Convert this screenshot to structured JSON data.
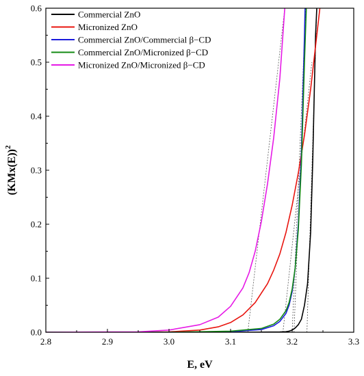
{
  "chart_data": {
    "type": "line",
    "title": "",
    "xlabel": "E, eV",
    "ylabel_main": "(KMx(E))",
    "ylabel_sup": "2",
    "xlim": [
      2.8,
      3.3
    ],
    "ylim": [
      0.0,
      0.6
    ],
    "x_ticks": [
      "2.8",
      "2.9",
      "3.0",
      "3.1",
      "3.2",
      "3.3"
    ],
    "y_ticks": [
      "0.0",
      "0.1",
      "0.2",
      "0.3",
      "0.4",
      "0.5",
      "0.6"
    ],
    "grid": false,
    "legend_position": "top-left",
    "series": [
      {
        "name": "Commercial ZnO",
        "color": "#000000",
        "points": [
          [
            2.8,
            0
          ],
          [
            3.1,
            0
          ],
          [
            3.18,
            0.0005
          ],
          [
            3.19,
            0.001
          ],
          [
            3.195,
            0.002
          ],
          [
            3.2,
            0.004
          ],
          [
            3.205,
            0.008
          ],
          [
            3.21,
            0.014
          ],
          [
            3.215,
            0.024
          ],
          [
            3.22,
            0.05
          ],
          [
            3.225,
            0.09
          ],
          [
            3.23,
            0.185
          ],
          [
            3.2335,
            0.32
          ],
          [
            3.236,
            0.45
          ],
          [
            3.238,
            0.55
          ],
          [
            3.24,
            0.6
          ]
        ]
      },
      {
        "name": "Micronized ZnO",
        "color": "#e8140e",
        "points": [
          [
            2.8,
            0
          ],
          [
            2.95,
            0.0001
          ],
          [
            3.0,
            0.0007
          ],
          [
            3.05,
            0.004
          ],
          [
            3.08,
            0.01
          ],
          [
            3.1,
            0.018
          ],
          [
            3.12,
            0.032
          ],
          [
            3.14,
            0.055
          ],
          [
            3.16,
            0.09
          ],
          [
            3.17,
            0.115
          ],
          [
            3.18,
            0.145
          ],
          [
            3.19,
            0.185
          ],
          [
            3.2,
            0.235
          ],
          [
            3.21,
            0.295
          ],
          [
            3.22,
            0.365
          ],
          [
            3.23,
            0.45
          ],
          [
            3.24,
            0.55
          ],
          [
            3.245,
            0.6
          ]
        ]
      },
      {
        "name": "Commercial ZnO/Commercial β−CD",
        "color": "#1a1adc",
        "points": [
          [
            2.8,
            0
          ],
          [
            3.0,
            0
          ],
          [
            3.1,
            0.001
          ],
          [
            3.15,
            0.005
          ],
          [
            3.17,
            0.012
          ],
          [
            3.18,
            0.02
          ],
          [
            3.19,
            0.035
          ],
          [
            3.195,
            0.05
          ],
          [
            3.2,
            0.075
          ],
          [
            3.205,
            0.12
          ],
          [
            3.21,
            0.2
          ],
          [
            3.215,
            0.33
          ],
          [
            3.22,
            0.55
          ],
          [
            3.221,
            0.6
          ]
        ]
      },
      {
        "name": "Commercial ZnO/Micronized β−CD",
        "color": "#128a12",
        "points": [
          [
            2.8,
            0
          ],
          [
            3.0,
            0
          ],
          [
            3.1,
            0.002
          ],
          [
            3.15,
            0.007
          ],
          [
            3.17,
            0.015
          ],
          [
            3.18,
            0.024
          ],
          [
            3.19,
            0.04
          ],
          [
            3.195,
            0.055
          ],
          [
            3.2,
            0.08
          ],
          [
            3.205,
            0.12
          ],
          [
            3.21,
            0.19
          ],
          [
            3.215,
            0.31
          ],
          [
            3.22,
            0.5
          ],
          [
            3.223,
            0.6
          ]
        ]
      },
      {
        "name": "Micronized ZnO/Micronized β−CD",
        "color": "#e619e6",
        "points": [
          [
            2.8,
            0
          ],
          [
            2.95,
            0.0008
          ],
          [
            3.0,
            0.004
          ],
          [
            3.05,
            0.014
          ],
          [
            3.08,
            0.028
          ],
          [
            3.1,
            0.048
          ],
          [
            3.12,
            0.082
          ],
          [
            3.13,
            0.11
          ],
          [
            3.14,
            0.15
          ],
          [
            3.15,
            0.205
          ],
          [
            3.16,
            0.275
          ],
          [
            3.17,
            0.36
          ],
          [
            3.18,
            0.47
          ],
          [
            3.188,
            0.6
          ]
        ]
      }
    ],
    "tangent_lines": [
      {
        "x1": 3.128,
        "y1": 0,
        "x2": 3.188,
        "y2": 0.6
      },
      {
        "x1": 3.185,
        "y1": 0,
        "x2": 3.232,
        "y2": 0.5
      },
      {
        "x1": 3.2,
        "y1": 0,
        "x2": 3.222,
        "y2": 0.6
      },
      {
        "x1": 3.203,
        "y1": 0,
        "x2": 3.223,
        "y2": 0.6
      },
      {
        "x1": 3.224,
        "y1": 0,
        "x2": 3.24,
        "y2": 0.6
      }
    ]
  }
}
